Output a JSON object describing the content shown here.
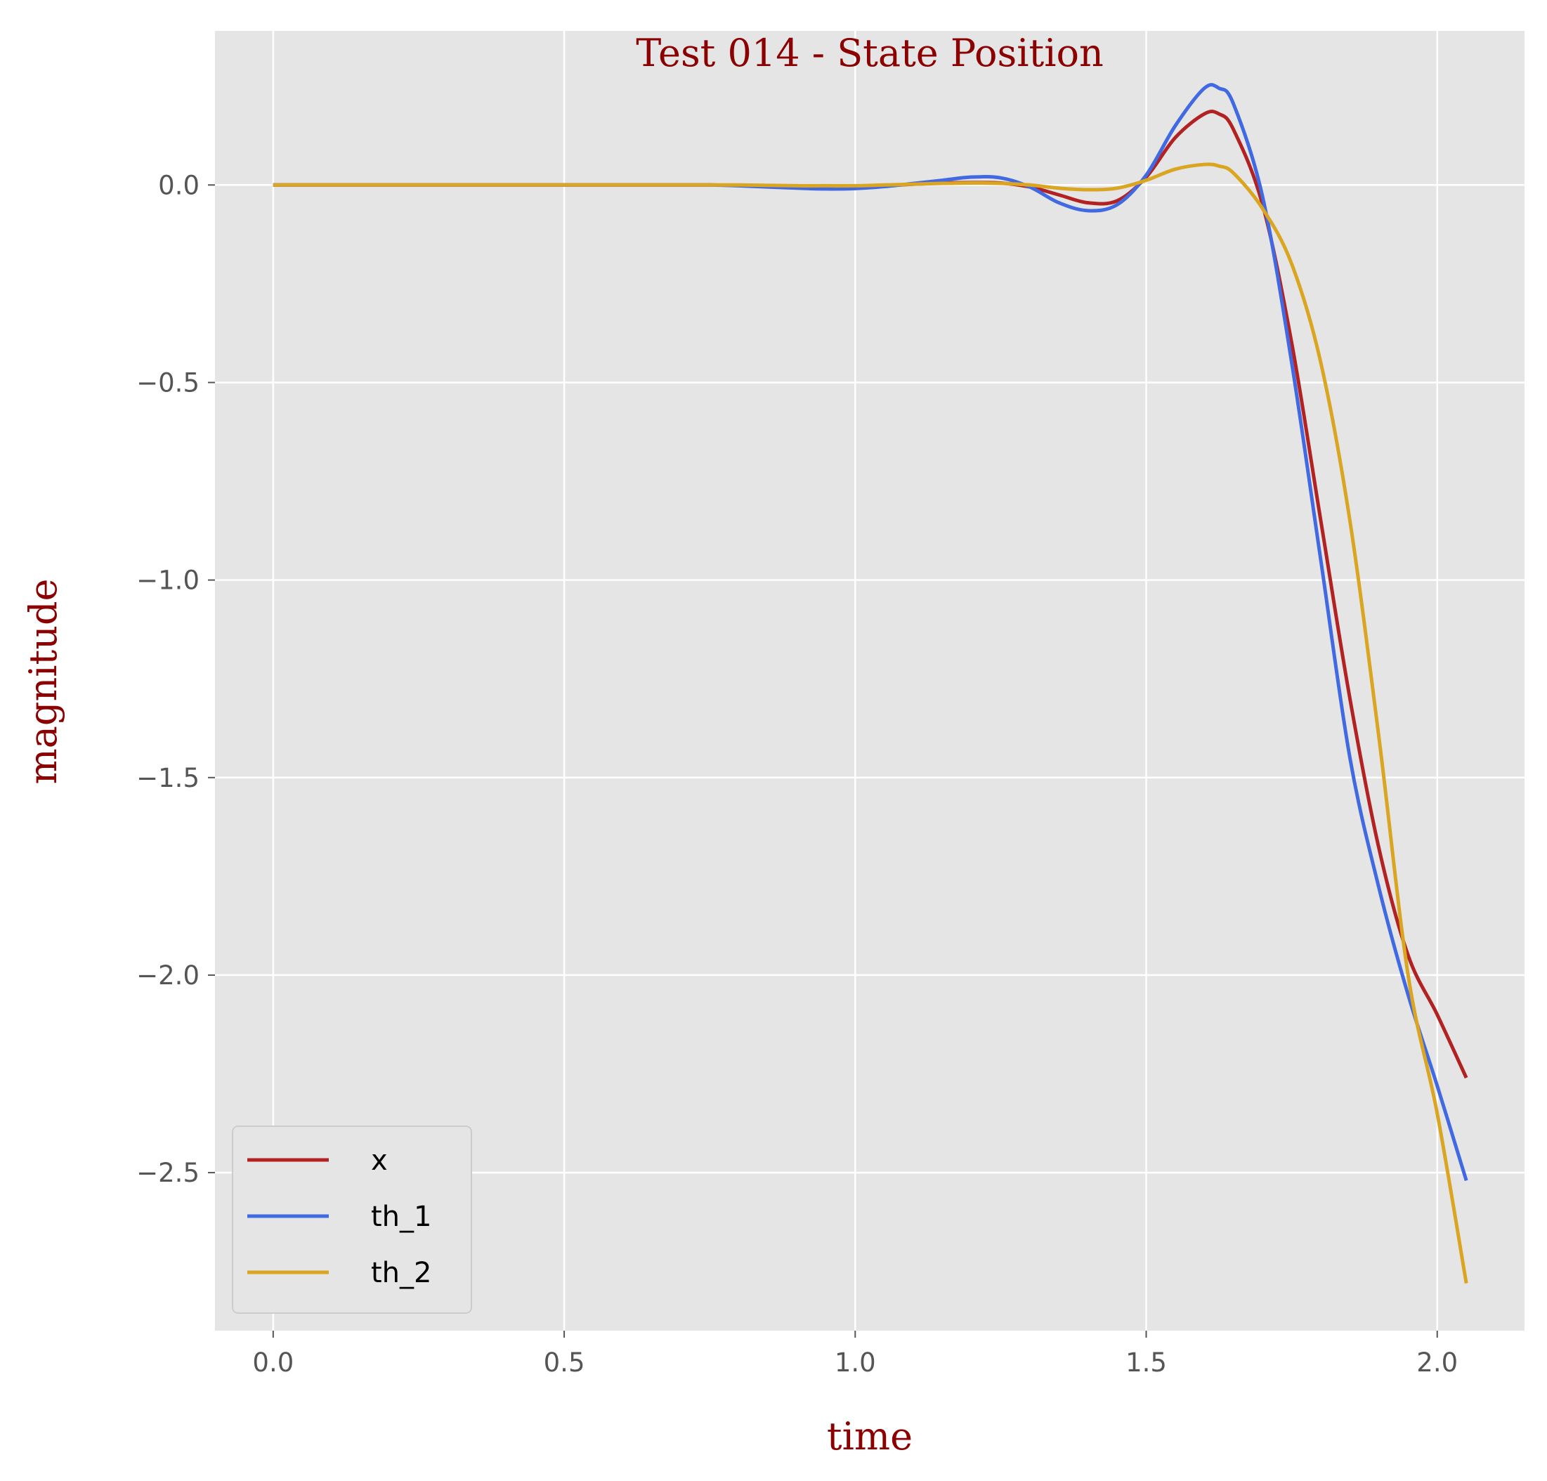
{
  "chart_data": {
    "type": "line",
    "title": "Test 014 - State Position",
    "xlabel": "time",
    "ylabel": "magnitude",
    "xlim": [
      -0.1,
      2.15
    ],
    "ylim": [
      -2.9,
      0.39
    ],
    "xticks": [
      0.0,
      0.5,
      1.0,
      1.5,
      2.0
    ],
    "xtick_labels": [
      "0.0",
      "0.5",
      "1.0",
      "1.5",
      "2.0"
    ],
    "yticks": [
      0.0,
      -0.5,
      -1.0,
      -1.5,
      -2.0,
      -2.5
    ],
    "ytick_labels": [
      "0.0",
      "−0.5",
      "−1.0",
      "−1.5",
      "−2.0",
      "−2.5"
    ],
    "grid": true,
    "legend_position": "lower-left",
    "x": [
      0.0,
      0.1,
      0.2,
      0.3,
      0.4,
      0.5,
      0.6,
      0.7,
      0.75,
      0.8,
      0.85,
      0.9,
      0.95,
      1.0,
      1.05,
      1.1,
      1.15,
      1.2,
      1.25,
      1.3,
      1.35,
      1.4,
      1.45,
      1.5,
      1.55,
      1.6,
      1.625,
      1.65,
      1.7,
      1.75,
      1.8,
      1.85,
      1.9,
      1.95,
      2.0,
      2.05
    ],
    "series": [
      {
        "name": "x",
        "color": "#b22222",
        "values": [
          0.0,
          0.0,
          0.0,
          0.0,
          0.0,
          0.0,
          0.0,
          0.0,
          0.0,
          -0.001,
          -0.003,
          -0.005,
          -0.006,
          -0.005,
          -0.002,
          0.002,
          0.005,
          0.006,
          0.005,
          -0.005,
          -0.025,
          -0.045,
          -0.04,
          0.02,
          0.12,
          0.18,
          0.18,
          0.14,
          -0.05,
          -0.4,
          -0.85,
          -1.3,
          -1.68,
          -1.95,
          -2.1,
          -2.26
        ]
      },
      {
        "name": "th_1",
        "color": "#4169e1",
        "values": [
          0.0,
          0.0,
          0.0,
          0.0,
          0.0,
          0.0,
          0.0,
          0.0,
          0.0,
          -0.002,
          -0.005,
          -0.008,
          -0.01,
          -0.009,
          -0.004,
          0.004,
          0.012,
          0.02,
          0.018,
          -0.005,
          -0.045,
          -0.065,
          -0.05,
          0.025,
          0.15,
          0.245,
          0.245,
          0.205,
          -0.03,
          -0.45,
          -0.95,
          -1.45,
          -1.78,
          -2.05,
          -2.28,
          -2.52
        ]
      },
      {
        "name": "th_2",
        "color": "#daa520",
        "values": [
          0.0,
          0.0,
          0.0,
          0.0,
          0.0,
          0.0,
          0.0,
          0.0,
          0.0,
          0.0,
          -0.001,
          -0.002,
          -0.002,
          -0.002,
          0.0,
          0.002,
          0.004,
          0.005,
          0.004,
          0.0,
          -0.008,
          -0.012,
          -0.008,
          0.012,
          0.04,
          0.052,
          0.048,
          0.03,
          -0.06,
          -0.2,
          -0.45,
          -0.85,
          -1.4,
          -2.0,
          -2.35,
          -2.78
        ]
      }
    ]
  }
}
